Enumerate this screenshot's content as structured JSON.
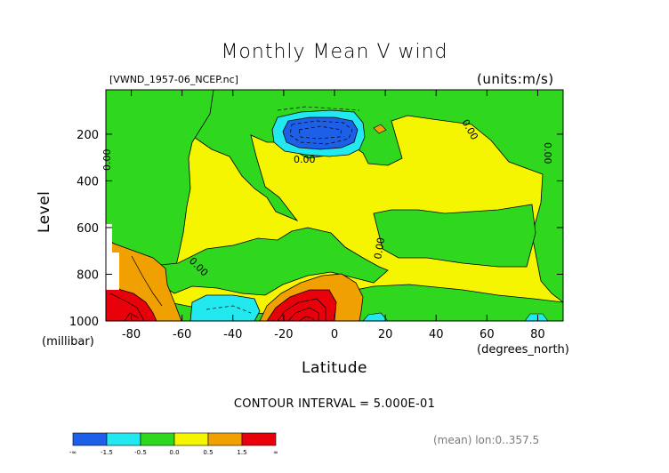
{
  "header": {
    "title": "Monthly Mean V wind",
    "file": "[VWND_1957-06_NCEP.nc]",
    "units": "(units:m/s)"
  },
  "footer": {
    "contour_interval": "CONTOUR INTERVAL = 5.000E-01",
    "mean_note": "(mean) lon:0..357.5"
  },
  "contour_labels": [
    "0.00",
    "0.00",
    "0.00",
    "0.00",
    "0.00",
    "0.00"
  ],
  "colorbar": {
    "colors": [
      "#1e5fe8",
      "#22e8f0",
      "#2fd81f",
      "#f5f500",
      "#f0a000",
      "#e8000a"
    ],
    "labels": [
      "-∞",
      "-1.5",
      "-0.5",
      "0.0",
      "0.5",
      "1.5",
      "∞"
    ]
  },
  "chart_data": {
    "type": "contour",
    "title": "Monthly Mean V wind",
    "subtitle": "[VWND_1957-06_NCEP.nc]",
    "units": "(units:m/s)",
    "xlabel": "Latitude",
    "xunit": "(degrees_north)",
    "ylabel": "Level",
    "yunit": "(millibar)",
    "xlim": [
      -90,
      90
    ],
    "ylim": [
      1000,
      10
    ],
    "xticks": [
      -80,
      -60,
      -40,
      -20,
      0,
      20,
      40,
      60,
      80
    ],
    "yticks": [
      200,
      400,
      600,
      800,
      1000
    ],
    "contour_interval": 0.5,
    "regions": [
      {
        "level": "< -1.5",
        "color": "#1e5fe8",
        "lat": [
          -12,
          8
        ],
        "lev": [
          110,
          270
        ]
      },
      {
        "level": "-1.5 to -0.5",
        "color": "#22e8f0",
        "lat": [
          -17,
          11
        ],
        "lev": [
          90,
          300
        ]
      },
      {
        "level": "-1.5 to -0.5",
        "color": "#22e8f0",
        "lat": [
          -58,
          -30
        ],
        "lev": [
          850,
          1000
        ]
      },
      {
        "level": "0.5 to 1.5",
        "color": "#f0a000",
        "lat": [
          -25,
          9
        ],
        "lev": [
          780,
          1000
        ]
      },
      {
        "level": "0.5 to 1.5",
        "color": "#f0a000",
        "lat": [
          -90,
          -62
        ],
        "lev": [
          720,
          1000
        ]
      },
      {
        "level": "> 1.5",
        "color": "#e8000a",
        "lat": [
          -19,
          1
        ],
        "lev": [
          900,
          1000
        ]
      },
      {
        "level": "> 1.5",
        "color": "#e8000a",
        "lat": [
          -90,
          -74
        ],
        "lev": [
          880,
          1000
        ]
      }
    ]
  }
}
